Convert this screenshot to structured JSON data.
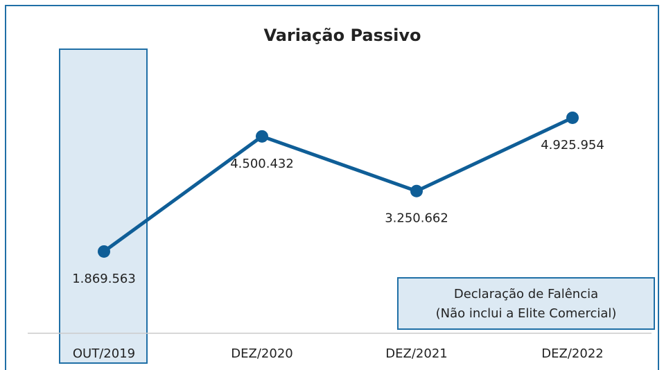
{
  "chart_data": {
    "type": "line",
    "title": "Variação Passivo",
    "categories": [
      "OUT/2019",
      "DEZ/2020",
      "DEZ/2021",
      "DEZ/2022"
    ],
    "values": [
      1869563,
      4500432,
      3250662,
      4925954
    ],
    "value_labels": [
      "1.869.563",
      "4.500.432",
      "3.250.662",
      "4.925.954"
    ],
    "color": "#0f5e97",
    "ylim": [
      0,
      7000000
    ],
    "annotation": [
      "Declaração de Falência",
      "(Não inclui a Elite Comercial)"
    ]
  }
}
